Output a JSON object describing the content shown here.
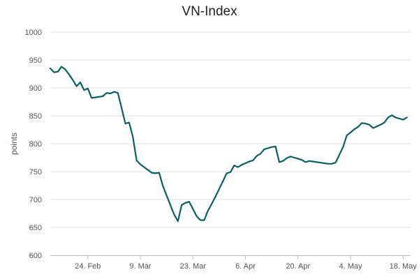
{
  "chart_data": {
    "type": "line",
    "title": "VN-Index",
    "ylabel": "points",
    "xlabel": "",
    "ylim": [
      600,
      1000
    ],
    "yticks": [
      600,
      650,
      700,
      750,
      800,
      850,
      900,
      950,
      1000
    ],
    "xlim": [
      "2020-02-14",
      "2020-05-20"
    ],
    "xticks": [
      {
        "date": "2020-02-24",
        "label": "24. Feb"
      },
      {
        "date": "2020-03-09",
        "label": "9. Mar"
      },
      {
        "date": "2020-03-23",
        "label": "23. Mar"
      },
      {
        "date": "2020-04-06",
        "label": "6. Apr"
      },
      {
        "date": "2020-04-20",
        "label": "20. Apr"
      },
      {
        "date": "2020-05-04",
        "label": "4. May"
      },
      {
        "date": "2020-05-18",
        "label": "18. May"
      }
    ],
    "grid": true,
    "series": [
      {
        "name": "",
        "color": "#0c5f5f",
        "x": [
          "2020-02-14",
          "2020-02-15",
          "2020-02-16",
          "2020-02-17",
          "2020-02-18",
          "2020-02-19",
          "2020-02-20",
          "2020-02-21",
          "2020-02-22",
          "2020-02-23",
          "2020-02-24",
          "2020-02-25",
          "2020-02-26",
          "2020-02-27",
          "2020-02-28",
          "2020-02-29",
          "2020-03-01",
          "2020-03-02",
          "2020-03-03",
          "2020-03-04",
          "2020-03-05",
          "2020-03-06",
          "2020-03-07",
          "2020-03-08",
          "2020-03-09",
          "2020-03-10",
          "2020-03-11",
          "2020-03-12",
          "2020-03-13",
          "2020-03-14",
          "2020-03-15",
          "2020-03-16",
          "2020-03-17",
          "2020-03-18",
          "2020-03-19",
          "2020-03-20",
          "2020-03-21",
          "2020-03-22",
          "2020-03-23",
          "2020-03-24",
          "2020-03-25",
          "2020-03-26",
          "2020-03-27",
          "2020-03-28",
          "2020-03-29",
          "2020-03-30",
          "2020-03-31",
          "2020-04-01",
          "2020-04-02",
          "2020-04-03",
          "2020-04-04",
          "2020-04-05",
          "2020-04-06",
          "2020-04-07",
          "2020-04-08",
          "2020-04-09",
          "2020-04-10",
          "2020-04-11",
          "2020-04-12",
          "2020-04-13",
          "2020-04-14",
          "2020-04-15",
          "2020-04-16",
          "2020-04-17",
          "2020-04-18",
          "2020-04-19",
          "2020-04-20",
          "2020-04-21",
          "2020-04-22",
          "2020-04-23",
          "2020-04-24",
          "2020-04-25",
          "2020-04-26",
          "2020-04-27",
          "2020-04-28",
          "2020-04-29",
          "2020-04-30",
          "2020-05-01",
          "2020-05-02",
          "2020-05-03",
          "2020-05-04",
          "2020-05-05",
          "2020-05-06",
          "2020-05-07",
          "2020-05-08",
          "2020-05-09",
          "2020-05-10",
          "2020-05-11",
          "2020-05-12",
          "2020-05-13",
          "2020-05-14",
          "2020-05-15",
          "2020-05-16",
          "2020-05-17",
          "2020-05-18",
          "2020-05-19"
        ],
        "values": [
          935,
          928,
          929,
          938,
          933,
          924,
          914,
          903,
          910,
          896,
          899,
          882,
          883,
          884,
          885,
          891,
          890,
          893,
          891,
          864,
          836,
          838,
          812,
          770,
          763,
          758,
          753,
          748,
          747,
          748,
          724,
          707,
          690,
          673,
          661,
          690,
          694,
          696,
          683,
          670,
          663,
          663,
          680,
          692,
          705,
          719,
          733,
          747,
          749,
          761,
          758,
          762,
          765,
          768,
          770,
          778,
          782,
          790,
          792,
          794,
          795,
          767,
          769,
          774,
          777,
          775,
          773,
          771,
          767,
          769,
          768,
          767,
          766,
          765,
          764,
          764,
          766,
          780,
          794,
          815,
          820,
          826,
          830,
          837,
          836,
          834,
          828,
          831,
          834,
          838,
          847,
          851,
          847,
          845,
          843,
          847
        ]
      }
    ]
  }
}
